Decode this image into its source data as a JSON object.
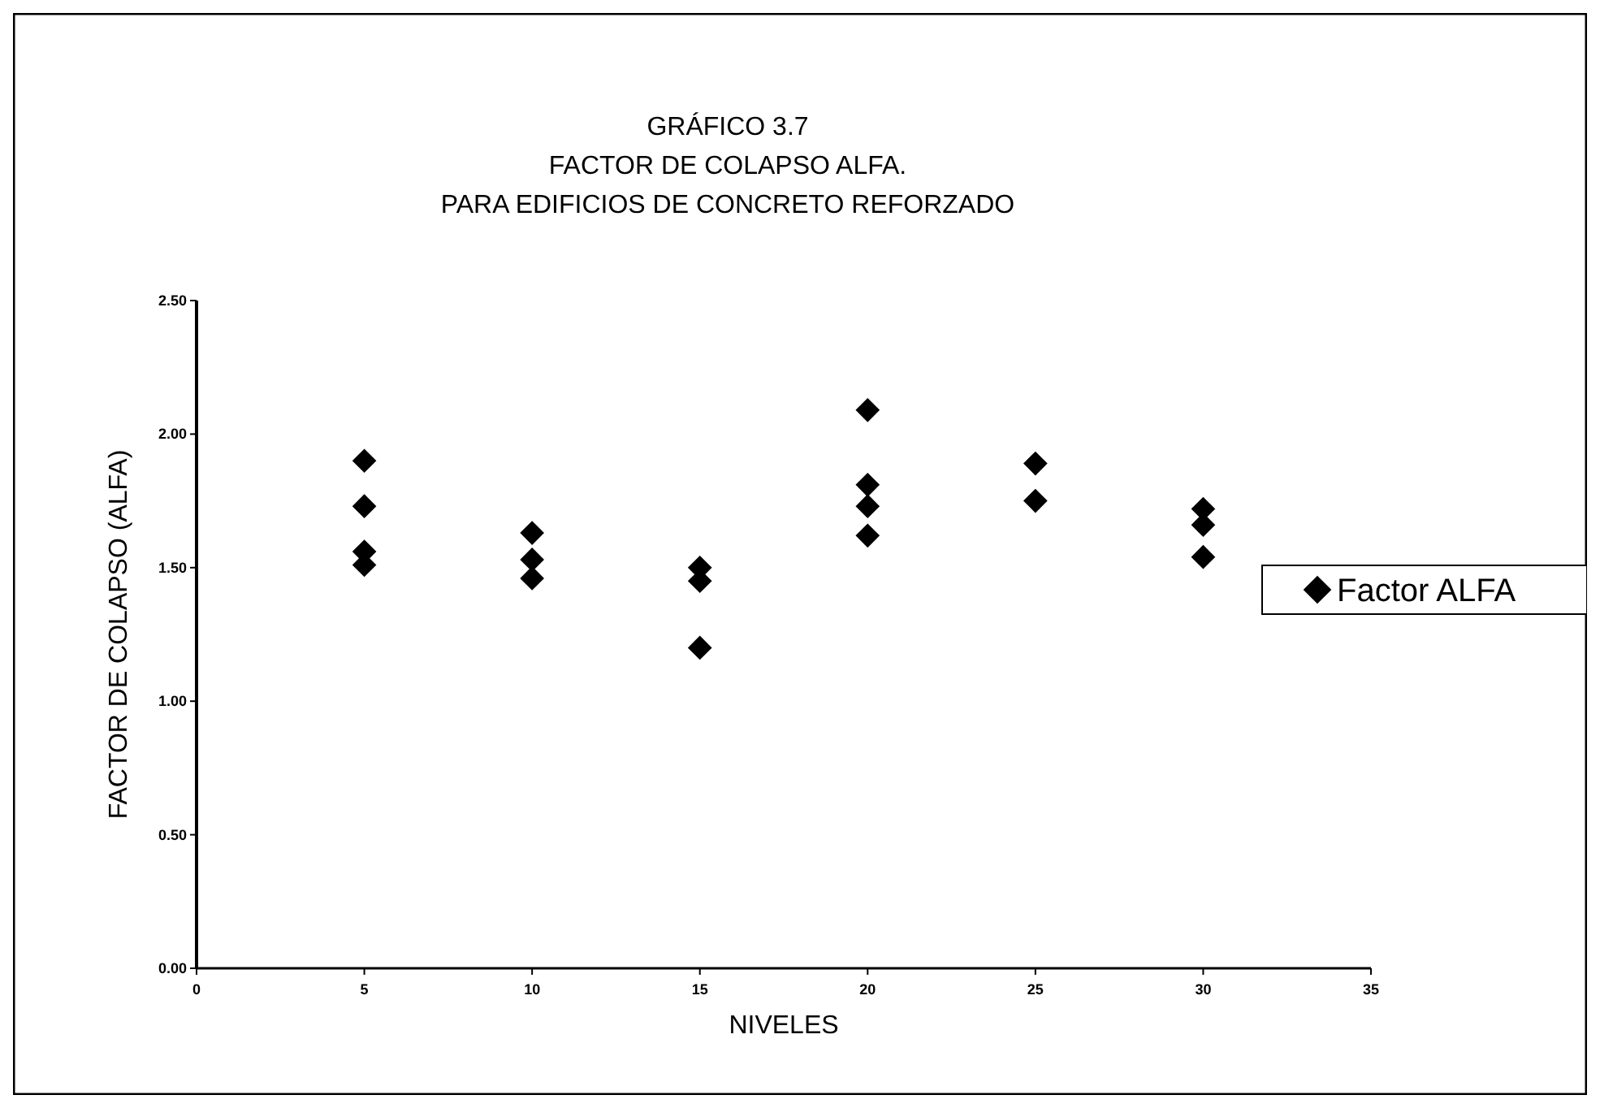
{
  "chart_data": {
    "type": "scatter",
    "title": "GRÁFICO 3.7\nFACTOR DE COLAPSO ALFA.\nPARA EDIFICIOS DE CONCRETO REFORZADO",
    "xlabel": "NIVELES",
    "ylabel": "FACTOR DE COLAPSO (ALFA)",
    "x": [
      5,
      5,
      5,
      5,
      10,
      10,
      10,
      15,
      15,
      15,
      20,
      20,
      20,
      20,
      25,
      25,
      30,
      30,
      30
    ],
    "series": [
      {
        "name": "Factor ALFA",
        "color": "#000000",
        "values": [
          1.9,
          1.73,
          1.56,
          1.51,
          1.63,
          1.53,
          1.46,
          1.5,
          1.45,
          1.2,
          2.09,
          1.81,
          1.73,
          1.62,
          1.89,
          1.75,
          1.72,
          1.66,
          1.54
        ]
      }
    ],
    "xlim": [
      0,
      35
    ],
    "xticks": [
      0,
      5,
      10,
      15,
      20,
      25,
      30,
      35
    ],
    "ylim": [
      0,
      2.5
    ],
    "yticks": [
      {
        "value": 0,
        "label": "0.00"
      },
      {
        "value": 0.5,
        "label": "0.50"
      },
      {
        "value": 1,
        "label": "1.00"
      },
      {
        "value": 1.5,
        "label": "1.50"
      },
      {
        "value": 2,
        "label": "2.00"
      },
      {
        "value": 2.5,
        "label": "2.50"
      }
    ],
    "marker": "diamond",
    "legend": "right",
    "grid": false
  }
}
